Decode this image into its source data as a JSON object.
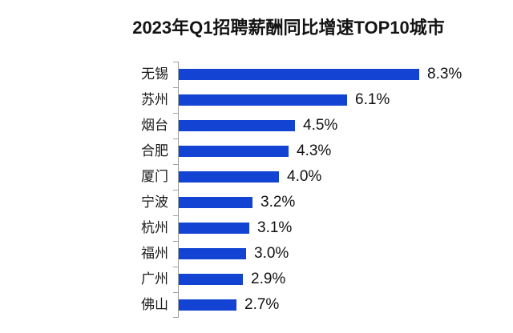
{
  "page": {
    "background": "#ffffff"
  },
  "chart_data": {
    "type": "bar",
    "orientation": "horizontal",
    "title": "2023年Q1招聘薪酬同比增速TOP10城市",
    "categories": [
      "无锡",
      "苏州",
      "烟台",
      "合肥",
      "厦门",
      "宁波",
      "杭州",
      "福州",
      "广州",
      "佛山"
    ],
    "values": [
      8.3,
      6.1,
      4.5,
      4.3,
      4.0,
      3.2,
      3.1,
      3.0,
      2.9,
      2.7
    ],
    "value_labels": [
      "8.3%",
      "6.1%",
      "4.5%",
      "4.3%",
      "4.0%",
      "3.2%",
      "3.1%",
      "3.0%",
      "2.9%",
      "2.7%"
    ],
    "xlabel": "",
    "ylabel": "",
    "xlim": [
      0.93,
      8.3
    ],
    "grid": false,
    "legend": "none",
    "sort": "descending",
    "bar_color": "#1243d2",
    "axis_color": "#a0a0a0",
    "label_color": "#1a1a1a",
    "title_color": "#141414"
  }
}
